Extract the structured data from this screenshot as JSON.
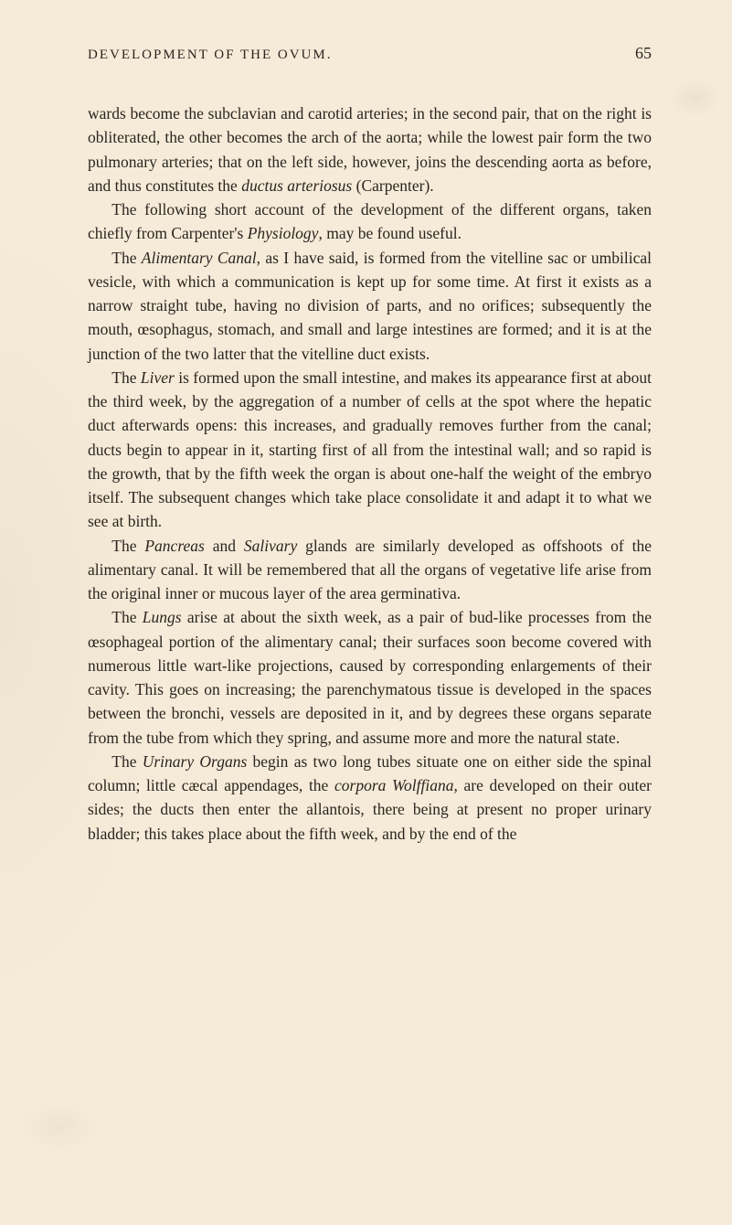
{
  "page": {
    "running_title": "DEVELOPMENT OF THE OVUM.",
    "number": "65"
  },
  "paragraphs": {
    "p1": "wards become the subclavian and carotid arteries; in the second pair, that on the right is obliterated, the other becomes the arch of the aorta; while the lowest pair form the two pulmonary arteries; that on the left side, however, joins the descending aorta as before, and thus constitutes the ",
    "p1_i1": "ductus arteriosus",
    "p1_tail": " (Carpenter).",
    "p2": "The following short account of the development of the different organs, taken chiefly from Carpenter's ",
    "p2_i1": "Physiology",
    "p2_tail": ", may be found useful.",
    "p3_lead": "The ",
    "p3_i1": "Alimentary Canal",
    "p3_tail": ", as I have said, is formed from the vitelline sac or umbilical vesicle, with which a communication is kept up for some time. At first it exists as a narrow straight tube, having no division of parts, and no orifices; subsequently the mouth, œsophagus, stomach, and small and large intestines are formed; and it is at the junction of the two latter that the vitelline duct exists.",
    "p4_lead": "The ",
    "p4_i1": "Liver",
    "p4_tail": " is formed upon the small intestine, and makes its appearance first at about the third week, by the aggregation of a number of cells at the spot where the hepatic duct afterwards opens: this increases, and gradually removes further from the canal; ducts begin to appear in it, starting first of all from the intestinal wall; and so rapid is the growth, that by the fifth week the organ is about one-half the weight of the embryo itself. The subsequent changes which take place consolidate it and adapt it to what we see at birth.",
    "p5_lead": "The ",
    "p5_i1": "Pancreas",
    "p5_mid": " and ",
    "p5_i2": "Salivary",
    "p5_tail": " glands are similarly developed as offshoots of the alimentary canal. It will be remembered that all the organs of vegetative life arise from the original inner or mucous layer of the area germinativa.",
    "p6_lead": "The ",
    "p6_i1": "Lungs",
    "p6_tail": " arise at about the sixth week, as a pair of bud-like processes from the œsophageal portion of the alimentary canal; their surfaces soon become covered with numerous little wart-like projections, caused by corresponding enlargements of their cavity. This goes on increasing; the parenchymatous tissue is developed in the spaces between the bronchi, vessels are deposited in it, and by degrees these organs separate from the tube from which they spring, and assume more and more the natural state.",
    "p7_lead": "The ",
    "p7_i1": "Urinary Organs",
    "p7_mid": " begin as two long tubes situate one on either side the spinal column; little cæcal appendages, the ",
    "p7_i2": "corpora Wolffiana",
    "p7_tail": ", are developed on their outer sides; the ducts then enter the allantois, there being at present no proper urinary bladder; this takes place about the fifth week, and by the end of the"
  },
  "styles": {
    "background_color": "#f5ebd8",
    "text_color": "#2a2520",
    "body_fontsize": 17.5,
    "header_fontsize": 15,
    "pagenum_fontsize": 18,
    "line_height": 1.5,
    "font_family": "Georgia, 'Times New Roman', serif"
  }
}
